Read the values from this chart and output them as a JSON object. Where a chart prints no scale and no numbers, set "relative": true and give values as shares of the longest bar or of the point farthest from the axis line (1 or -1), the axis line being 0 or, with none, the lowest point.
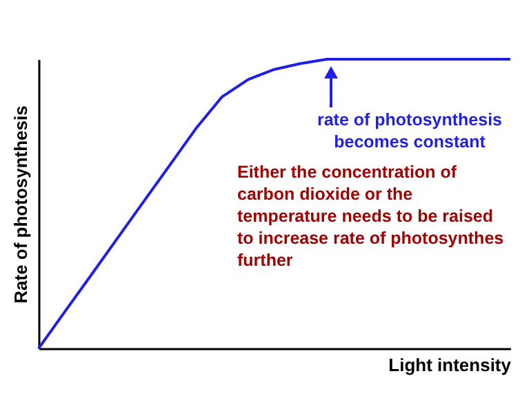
{
  "chart_data": {
    "type": "line",
    "relative": true,
    "xlabel": "Light intensity",
    "ylabel": "Rate of photosynthesis",
    "categories": [
      null,
      null,
      null,
      null,
      null,
      null,
      null,
      null,
      null,
      null,
      null,
      null,
      null,
      null,
      null,
      null,
      null,
      null,
      null
    ],
    "values": [
      0,
      0.127,
      0.253,
      0.38,
      0.507,
      0.633,
      0.76,
      0.87,
      0.93,
      0.965,
      0.985,
      1,
      1,
      1,
      1,
      1,
      1,
      1,
      1
    ],
    "color": "#1f1fe6",
    "annotations": [
      "rate of photosynthesis becomes constant",
      "Either the concentration of carbon dioxide or the temperature needs to be raised to increase rate of photosynthes further"
    ]
  }
}
